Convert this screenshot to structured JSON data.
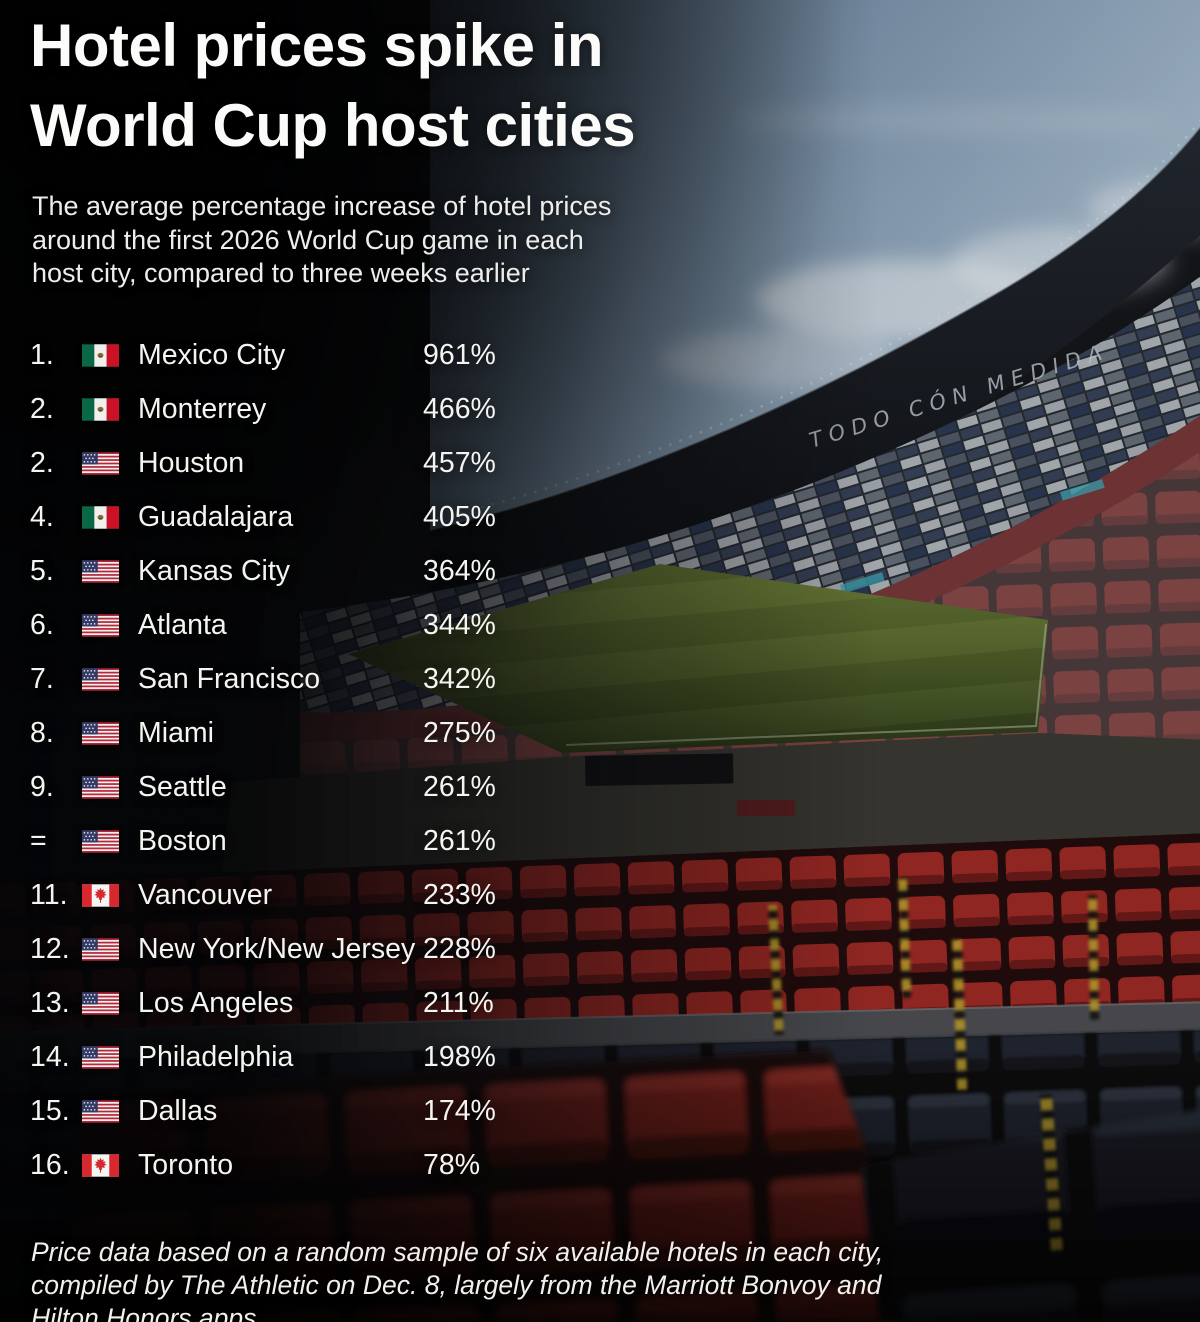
{
  "title": {
    "lines": [
      "Hotel prices spike in",
      "World Cup host cities"
    ]
  },
  "subtitle": {
    "lines": [
      "The average percentage increase of hotel prices",
      "around the first 2026 World Cup game in each",
      "host city, compared to three weeks earlier"
    ]
  },
  "ranking": {
    "rows": [
      {
        "rank": "1.",
        "flag": "mx",
        "city": "Mexico City",
        "value": "961%"
      },
      {
        "rank": "2.",
        "flag": "mx",
        "city": "Monterrey",
        "value": "466%"
      },
      {
        "rank": "2.",
        "flag": "us",
        "city": "Houston",
        "value": "457%"
      },
      {
        "rank": "4.",
        "flag": "mx",
        "city": "Guadalajara",
        "value": "405%"
      },
      {
        "rank": "5.",
        "flag": "us",
        "city": "Kansas City",
        "value": "364%"
      },
      {
        "rank": "6.",
        "flag": "us",
        "city": "Atlanta",
        "value": "344%"
      },
      {
        "rank": "7.",
        "flag": "us",
        "city": "San Francisco",
        "value": "342%"
      },
      {
        "rank": "8.",
        "flag": "us",
        "city": "Miami",
        "value": "275%"
      },
      {
        "rank": "9.",
        "flag": "us",
        "city": "Seattle",
        "value": "261%"
      },
      {
        "rank": "=",
        "flag": "us",
        "city": "Boston",
        "value": "261%"
      },
      {
        "rank": "11.",
        "flag": "ca",
        "city": "Vancouver",
        "value": "233%"
      },
      {
        "rank": "12.",
        "flag": "us",
        "city": "New York/New Jersey",
        "value": "228%"
      },
      {
        "rank": "13.",
        "flag": "us",
        "city": "Los Angeles",
        "value": "211%"
      },
      {
        "rank": "14.",
        "flag": "us",
        "city": "Philadelphia",
        "value": "198%"
      },
      {
        "rank": "15.",
        "flag": "us",
        "city": "Dallas",
        "value": "174%"
      },
      {
        "rank": "16.",
        "flag": "ca",
        "city": "Toronto",
        "value": "78%"
      }
    ]
  },
  "footnote": {
    "lines": [
      "Price data based on a random sample of six available hotels in each city,",
      "compiled by The Athletic on Dec. 8, largely from the Marriott Bonvoy and",
      "Hilton Honors apps"
    ]
  },
  "background": {
    "banner_text": "TODO CÓN MEDIDA",
    "scene": "Empty Estadio Azteca bowl: blue sky through roof opening, mosaic stands, green pitch, tiers of red and black seats"
  },
  "colors": {
    "text": "#f4f4f0",
    "sky": "#8fa8c2",
    "pitch_green": "#53672e",
    "seat_red": "#a62b26",
    "seat_dark": "#1d222b",
    "flag_mexico_green": "#0a6847",
    "flag_red": "#cc1127",
    "flag_us_canton": "#323a66",
    "flag_canada_red": "#d7282f"
  },
  "chart_data": {
    "type": "table",
    "title": "Hotel prices spike in World Cup host cities",
    "subtitle": "The average percentage increase of hotel prices around the first 2026 World Cup game in each host city, compared to three weeks earlier",
    "columns": [
      "rank",
      "city",
      "country",
      "price_increase_pct"
    ],
    "rows": [
      [
        "1.",
        "Mexico City",
        "Mexico",
        961
      ],
      [
        "2.",
        "Monterrey",
        "Mexico",
        466
      ],
      [
        "2.",
        "Houston",
        "United States",
        457
      ],
      [
        "4.",
        "Guadalajara",
        "Mexico",
        405
      ],
      [
        "5.",
        "Kansas City",
        "United States",
        364
      ],
      [
        "6.",
        "Atlanta",
        "United States",
        344
      ],
      [
        "7.",
        "San Francisco",
        "United States",
        342
      ],
      [
        "8.",
        "Miami",
        "United States",
        275
      ],
      [
        "9.",
        "Seattle",
        "United States",
        261
      ],
      [
        "=",
        "Boston",
        "United States",
        261
      ],
      [
        "11.",
        "Vancouver",
        "Canada",
        233
      ],
      [
        "12.",
        "New York/New Jersey",
        "United States",
        228
      ],
      [
        "13.",
        "Los Angeles",
        "United States",
        211
      ],
      [
        "14.",
        "Philadelphia",
        "United States",
        198
      ],
      [
        "15.",
        "Dallas",
        "United States",
        174
      ],
      [
        "16.",
        "Toronto",
        "Canada",
        78
      ]
    ],
    "note": "Price data based on a random sample of six available hotels in each city, compiled by The Athletic on Dec. 8, largely from the Marriott Bonvoy and Hilton Honors apps"
  }
}
